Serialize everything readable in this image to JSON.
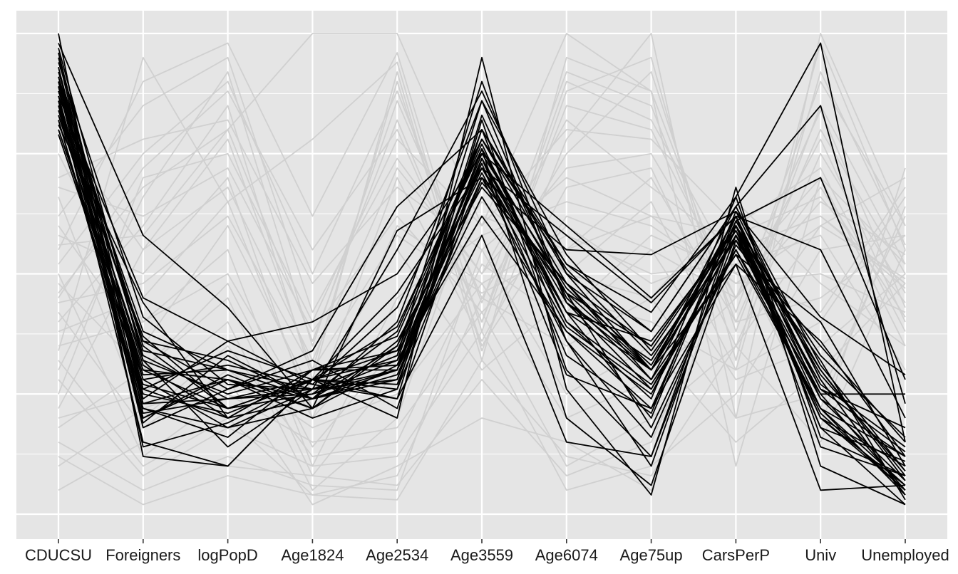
{
  "chart_data": {
    "type": "line",
    "subtype": "parallel-coordinates",
    "title": "",
    "xlabel": "",
    "ylabel": "",
    "categories": [
      "CDUCSU",
      "Foreigners",
      "logPopD",
      "Age1824",
      "Age2534",
      "Age3559",
      "Age6074",
      "Age75up",
      "CarsPerP",
      "Univ",
      "Unemployed"
    ],
    "ylim": [
      0,
      1
    ],
    "grid": true,
    "legend": "none",
    "colors": {
      "panel_background": "#e5e5e5",
      "grid_line": "#ffffff",
      "context_line": "#d0d0d0",
      "highlight_line": "#000000",
      "label_text": "#1a1a1a"
    },
    "series": [
      {
        "group": "context",
        "values": [
          0.8,
          0.55,
          0.78,
          0.3,
          0.9,
          0.35,
          0.62,
          0.55,
          0.45,
          0.78,
          0.4
        ]
      },
      {
        "group": "context",
        "values": [
          0.62,
          0.85,
          0.95,
          0.42,
          0.74,
          0.5,
          0.82,
          0.68,
          0.55,
          0.62,
          0.48
        ]
      },
      {
        "group": "context",
        "values": [
          0.45,
          0.72,
          0.88,
          0.55,
          0.8,
          0.4,
          0.9,
          0.82,
          0.5,
          0.7,
          0.35
        ]
      },
      {
        "group": "context",
        "values": [
          0.3,
          0.66,
          0.92,
          0.35,
          0.86,
          0.45,
          0.75,
          0.92,
          0.38,
          0.85,
          0.52
        ]
      },
      {
        "group": "context",
        "values": [
          0.55,
          0.9,
          0.98,
          0.62,
          0.96,
          0.38,
          0.88,
          0.95,
          0.32,
          0.98,
          0.55
        ]
      },
      {
        "group": "context",
        "values": [
          0.7,
          0.78,
          0.82,
          0.48,
          0.68,
          0.55,
          0.7,
          0.62,
          0.58,
          0.66,
          0.44
        ]
      },
      {
        "group": "context",
        "values": [
          0.4,
          0.6,
          0.85,
          0.28,
          0.92,
          0.32,
          0.95,
          0.88,
          0.42,
          0.9,
          0.6
        ]
      },
      {
        "group": "context",
        "values": [
          0.25,
          0.7,
          0.75,
          0.4,
          0.78,
          0.6,
          0.8,
          0.78,
          0.6,
          0.72,
          0.38
        ]
      },
      {
        "group": "context",
        "values": [
          0.58,
          0.5,
          0.7,
          0.2,
          0.6,
          0.48,
          0.58,
          0.5,
          0.52,
          0.58,
          0.3
        ]
      },
      {
        "group": "context",
        "values": [
          0.35,
          0.4,
          0.55,
          0.1,
          0.45,
          0.58,
          0.65,
          0.6,
          0.48,
          0.5,
          0.42
        ]
      },
      {
        "group": "context",
        "values": [
          0.48,
          0.3,
          0.45,
          0.08,
          0.3,
          0.62,
          0.55,
          0.7,
          0.4,
          0.45,
          0.58
        ]
      },
      {
        "group": "context",
        "values": [
          0.2,
          0.25,
          0.4,
          0.05,
          0.2,
          0.7,
          0.5,
          0.65,
          0.3,
          0.4,
          0.66
        ]
      },
      {
        "group": "context",
        "values": [
          0.66,
          0.2,
          0.35,
          0.12,
          0.15,
          0.52,
          0.4,
          0.55,
          0.28,
          0.35,
          0.5
        ]
      },
      {
        "group": "context",
        "values": [
          0.32,
          0.1,
          0.2,
          0.04,
          0.08,
          0.45,
          0.35,
          0.45,
          0.2,
          0.25,
          0.62
        ]
      },
      {
        "group": "context",
        "values": [
          0.15,
          0.05,
          0.12,
          0.06,
          0.05,
          0.55,
          0.25,
          0.35,
          0.15,
          0.3,
          0.48
        ]
      },
      {
        "group": "context",
        "values": [
          0.5,
          0.12,
          0.25,
          0.15,
          0.18,
          0.42,
          0.1,
          0.2,
          0.35,
          0.6,
          0.7
        ]
      },
      {
        "group": "context",
        "values": [
          0.28,
          0.08,
          0.18,
          0.1,
          0.12,
          0.38,
          0.05,
          0.1,
          0.25,
          0.55,
          0.58
        ]
      },
      {
        "group": "context",
        "values": [
          0.42,
          0.18,
          0.3,
          0.18,
          0.25,
          0.48,
          0.2,
          0.28,
          0.45,
          0.65,
          0.54
        ]
      },
      {
        "group": "context",
        "values": [
          0.6,
          0.35,
          0.6,
          0.25,
          0.55,
          0.3,
          0.45,
          0.4,
          0.3,
          0.92,
          0.56
        ]
      },
      {
        "group": "context",
        "values": [
          0.38,
          0.45,
          0.65,
          0.22,
          0.7,
          0.36,
          0.68,
          0.72,
          0.35,
          0.75,
          0.46
        ]
      },
      {
        "group": "context",
        "values": [
          0.1,
          0.22,
          0.28,
          0.02,
          0.1,
          0.2,
          0.15,
          0.05,
          0.6,
          0.22,
          0.64
        ]
      },
      {
        "group": "context",
        "values": [
          0.68,
          0.62,
          0.72,
          0.38,
          0.62,
          0.42,
          0.6,
          0.48,
          0.55,
          0.62,
          0.47
        ]
      },
      {
        "group": "context",
        "values": [
          0.52,
          0.75,
          0.9,
          0.5,
          0.88,
          0.44,
          0.92,
          0.85,
          0.4,
          0.8,
          0.5
        ]
      },
      {
        "group": "context",
        "values": [
          0.22,
          0.55,
          0.68,
          0.32,
          0.72,
          0.5,
          0.72,
          0.75,
          0.45,
          0.68,
          0.41
        ]
      },
      {
        "group": "context",
        "values": [
          0.75,
          0.4,
          0.5,
          0.2,
          0.4,
          0.65,
          0.5,
          0.45,
          0.65,
          0.48,
          0.35
        ]
      },
      {
        "group": "context",
        "values": [
          0.05,
          0.15,
          0.1,
          0.08,
          0.06,
          0.28,
          0.08,
          0.15,
          0.55,
          0.18,
          0.72
        ]
      },
      {
        "group": "context",
        "values": [
          0.46,
          0.68,
          0.8,
          1.0,
          1.0,
          0.6,
          1.0,
          0.88,
          0.1,
          0.7,
          0.52
        ]
      },
      {
        "group": "context",
        "values": [
          0.34,
          0.95,
          0.65,
          0.78,
          0.94,
          0.34,
          0.78,
          1.0,
          0.2,
          1.0,
          0.6
        ]
      },
      {
        "group": "context",
        "values": [
          0.18,
          0.3,
          0.48,
          0.14,
          0.35,
          0.75,
          0.42,
          0.58,
          0.5,
          0.42,
          0.68
        ]
      },
      {
        "group": "context",
        "values": [
          0.56,
          0.58,
          0.8,
          0.36,
          0.82,
          0.4,
          0.85,
          0.8,
          0.45,
          0.84,
          0.43
        ]
      },
      {
        "group": "context",
        "values": [
          0.12,
          0.02,
          0.08,
          0.04,
          0.03,
          0.32,
          0.12,
          0.08,
          0.35,
          0.15,
          0.55
        ]
      },
      {
        "group": "context",
        "values": [
          0.44,
          0.48,
          0.62,
          0.3,
          0.58,
          0.46,
          0.55,
          0.62,
          0.48,
          0.6,
          0.49
        ]
      },
      {
        "group": "highlight",
        "values": [
          0.96,
          0.26,
          0.2,
          0.24,
          0.28,
          0.74,
          0.44,
          0.26,
          0.55,
          0.25,
          0.05
        ]
      },
      {
        "group": "highlight",
        "values": [
          0.91,
          0.33,
          0.24,
          0.28,
          0.32,
          0.8,
          0.5,
          0.3,
          0.58,
          0.3,
          0.08
        ]
      },
      {
        "group": "highlight",
        "values": [
          0.88,
          0.38,
          0.3,
          0.26,
          0.3,
          0.76,
          0.46,
          0.35,
          0.6,
          0.22,
          0.12
        ]
      },
      {
        "group": "highlight",
        "values": [
          0.85,
          0.22,
          0.16,
          0.3,
          0.34,
          0.72,
          0.42,
          0.2,
          0.62,
          0.18,
          0.02
        ]
      },
      {
        "group": "highlight",
        "values": [
          0.82,
          0.2,
          0.28,
          0.2,
          0.26,
          0.7,
          0.36,
          0.16,
          0.56,
          0.35,
          0.15
        ]
      },
      {
        "group": "highlight",
        "values": [
          0.8,
          0.3,
          0.22,
          0.25,
          0.38,
          0.78,
          0.52,
          0.38,
          0.64,
          0.28,
          0.04
        ]
      },
      {
        "group": "highlight",
        "values": [
          0.93,
          0.24,
          0.36,
          0.27,
          0.24,
          0.82,
          0.3,
          0.12,
          0.58,
          0.2,
          0.06
        ]
      },
      {
        "group": "highlight",
        "values": [
          0.86,
          0.28,
          0.18,
          0.22,
          0.36,
          0.68,
          0.48,
          0.28,
          0.54,
          0.4,
          0.1
        ]
      },
      {
        "group": "highlight",
        "values": [
          0.89,
          0.18,
          0.26,
          0.32,
          0.22,
          0.74,
          0.4,
          0.24,
          0.66,
          0.16,
          0.08
        ]
      },
      {
        "group": "highlight",
        "values": [
          0.84,
          0.36,
          0.32,
          0.24,
          0.4,
          0.86,
          0.54,
          0.34,
          0.6,
          0.26,
          0.18
        ]
      },
      {
        "group": "highlight",
        "values": [
          0.97,
          0.32,
          0.14,
          0.26,
          0.28,
          0.76,
          0.2,
          0.06,
          0.57,
          0.32,
          0.03
        ]
      },
      {
        "group": "highlight",
        "values": [
          0.9,
          0.26,
          0.34,
          0.28,
          0.46,
          0.72,
          0.58,
          0.44,
          0.62,
          0.24,
          0.07
        ]
      },
      {
        "group": "highlight",
        "values": [
          0.81,
          0.44,
          0.2,
          0.3,
          0.3,
          0.66,
          0.38,
          0.22,
          0.52,
          0.36,
          0.12
        ]
      },
      {
        "group": "highlight",
        "values": [
          0.95,
          0.21,
          0.24,
          0.26,
          0.33,
          0.9,
          0.44,
          0.32,
          0.6,
          0.2,
          0.05
        ]
      },
      {
        "group": "highlight",
        "values": [
          0.83,
          0.29,
          0.3,
          0.24,
          0.35,
          0.78,
          0.48,
          0.3,
          0.64,
          0.31,
          0.09
        ]
      },
      {
        "group": "highlight",
        "values": [
          0.92,
          0.35,
          0.22,
          0.28,
          0.27,
          0.74,
          0.42,
          0.36,
          0.59,
          0.27,
          0.14
        ]
      },
      {
        "group": "highlight",
        "values": [
          0.87,
          0.23,
          0.28,
          0.22,
          0.31,
          0.7,
          0.46,
          0.18,
          0.55,
          0.22,
          0.04
        ]
      },
      {
        "group": "highlight",
        "values": [
          1.0,
          0.12,
          0.1,
          0.28,
          0.2,
          0.95,
          0.26,
          0.04,
          0.68,
          0.1,
          0.02
        ]
      },
      {
        "group": "highlight",
        "values": [
          0.98,
          0.58,
          0.43,
          0.22,
          0.59,
          0.7,
          0.55,
          0.54,
          0.63,
          0.41,
          0.29
        ]
      },
      {
        "group": "highlight",
        "values": [
          0.87,
          0.45,
          0.36,
          0.4,
          0.5,
          0.75,
          0.6,
          0.45,
          0.62,
          0.55,
          0.2
        ]
      },
      {
        "group": "highlight",
        "values": [
          0.9,
          0.36,
          0.26,
          0.34,
          0.64,
          0.8,
          0.52,
          0.42,
          0.66,
          0.98,
          0.15
        ]
      },
      {
        "group": "highlight",
        "values": [
          0.82,
          0.22,
          0.18,
          0.26,
          0.55,
          0.88,
          0.5,
          0.38,
          0.64,
          0.85,
          0.23
        ]
      },
      {
        "group": "highlight",
        "values": [
          0.86,
          0.15,
          0.1,
          0.28,
          0.24,
          0.58,
          0.15,
          0.12,
          0.61,
          0.7,
          0.28
        ]
      },
      {
        "group": "highlight",
        "values": [
          0.79,
          0.27,
          0.22,
          0.25,
          0.32,
          0.62,
          0.38,
          0.25,
          0.58,
          0.25,
          0.25
        ]
      },
      {
        "group": "highlight",
        "values": [
          0.84,
          0.3,
          0.28,
          0.24,
          0.3,
          0.86,
          0.44,
          0.3,
          0.52,
          0.05,
          0.06
        ]
      },
      {
        "group": "highlight",
        "values": [
          0.93,
          0.14,
          0.19,
          0.28,
          0.39,
          0.76,
          0.42,
          0.3,
          0.59,
          0.2,
          0.1
        ]
      },
      {
        "group": "highlight",
        "values": [
          0.88,
          0.34,
          0.3,
          0.24,
          0.28,
          0.8,
          0.36,
          0.1,
          0.6,
          0.18,
          0.11
        ]
      },
      {
        "group": "highlight",
        "values": [
          0.91,
          0.25,
          0.21,
          0.28,
          0.34,
          0.72,
          0.46,
          0.3,
          0.62,
          0.14,
          0.08
        ]
      },
      {
        "group": "highlight",
        "values": [
          0.85,
          0.32,
          0.25,
          0.3,
          0.37,
          0.77,
          0.4,
          0.27,
          0.54,
          0.22,
          0.06
        ]
      },
      {
        "group": "highlight",
        "values": [
          0.89,
          0.19,
          0.33,
          0.24,
          0.29,
          0.69,
          0.48,
          0.35,
          0.6,
          0.33,
          0.16
        ]
      },
      {
        "group": "highlight",
        "values": [
          0.94,
          0.41,
          0.27,
          0.26,
          0.33,
          0.74,
          0.33,
          0.21,
          0.63,
          0.28,
          0.04
        ]
      },
      {
        "group": "highlight",
        "values": [
          0.8,
          0.28,
          0.31,
          0.27,
          0.43,
          0.78,
          0.51,
          0.33,
          0.57,
          0.24,
          0.12
        ]
      },
      {
        "group": "highlight",
        "values": [
          0.96,
          0.23,
          0.24,
          0.25,
          0.3,
          0.73,
          0.29,
          0.22,
          0.61,
          0.3,
          0.07
        ]
      },
      {
        "group": "highlight",
        "values": [
          0.83,
          0.37,
          0.22,
          0.28,
          0.26,
          0.83,
          0.45,
          0.28,
          0.62,
          0.26,
          0.13
        ]
      },
      {
        "group": "highlight",
        "values": [
          0.9,
          0.2,
          0.29,
          0.22,
          0.35,
          0.71,
          0.39,
          0.26,
          0.58,
          0.21,
          0.05
        ]
      },
      {
        "group": "highlight",
        "values": [
          0.86,
          0.31,
          0.2,
          0.3,
          0.31,
          0.75,
          0.47,
          0.31,
          0.6,
          0.29,
          0.09
        ]
      }
    ]
  }
}
